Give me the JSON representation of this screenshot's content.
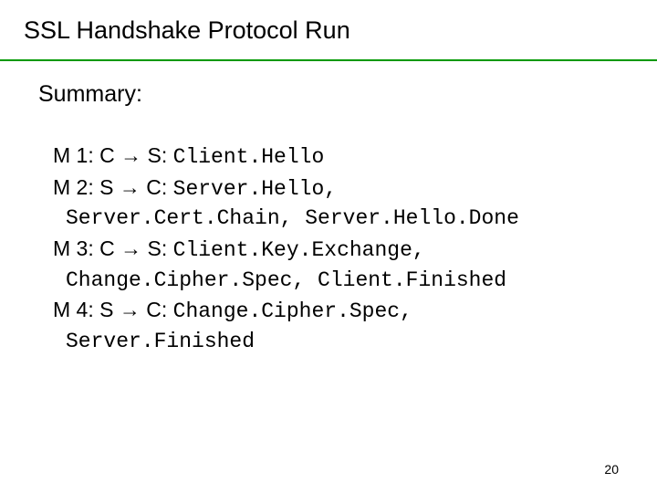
{
  "title": "SSL Handshake Protocol Run",
  "summary_label": "Summary:",
  "rule_color": "#009900",
  "messages": {
    "m1": {
      "prefix": "M 1: C → S: ",
      "payload": "Client.Hello"
    },
    "m2": {
      "prefix": "M 2: S → C: ",
      "payload": "Server.Hello,",
      "cont": "Server.Cert.Chain, Server.Hello.Done"
    },
    "m3": {
      "prefix": "M 3: C → S: ",
      "payload": "Client.Key.Exchange,",
      "cont": "Change.Cipher.Spec, Client.Finished"
    },
    "m4": {
      "prefix": "M 4: S → C: ",
      "payload": "Change.Cipher.Spec,",
      "cont": "Server.Finished"
    }
  },
  "page_number": "20",
  "colors": {
    "text": "#000000",
    "background": "#ffffff"
  },
  "fonts": {
    "body": "Arial",
    "mono": "Courier New",
    "title_size_pt": 27,
    "body_size_pt": 23
  }
}
